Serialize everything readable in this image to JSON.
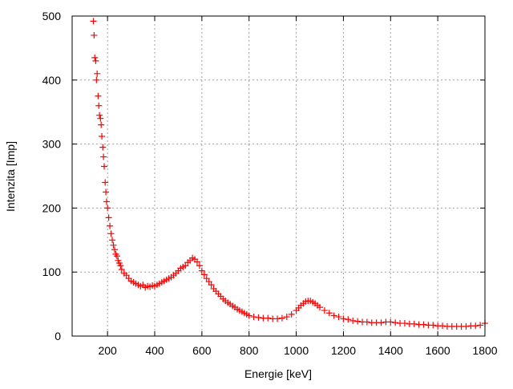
{
  "chart_data": {
    "type": "scatter",
    "title": "",
    "xlabel": "Energie [keV]",
    "ylabel": "Intenzita [Imp]",
    "xlim": [
      50,
      1800
    ],
    "ylim": [
      0,
      500
    ],
    "xticks": [
      200,
      400,
      600,
      800,
      1000,
      1200,
      1400,
      1600,
      1800
    ],
    "yticks": [
      0,
      100,
      200,
      300,
      400,
      500
    ],
    "grid": true,
    "marker": "+",
    "color": "#ff0000",
    "series": [
      {
        "x": [
          140,
          143,
          146,
          150,
          153,
          156,
          160,
          163,
          166,
          170,
          173,
          176,
          180,
          183,
          186,
          190,
          193,
          196,
          200,
          205,
          210,
          215,
          220,
          225,
          230,
          235,
          240,
          245,
          250,
          255,
          260,
          270,
          280,
          290,
          300,
          310,
          320,
          330,
          340,
          350,
          360,
          370,
          380,
          390,
          400,
          410,
          420,
          430,
          440,
          450,
          460,
          470,
          480,
          490,
          500,
          510,
          520,
          530,
          540,
          550,
          560,
          570,
          580,
          590,
          600,
          610,
          620,
          630,
          640,
          650,
          660,
          670,
          680,
          690,
          700,
          710,
          720,
          730,
          740,
          750,
          760,
          770,
          780,
          790,
          800,
          820,
          840,
          860,
          880,
          900,
          920,
          940,
          960,
          980,
          1000,
          1010,
          1020,
          1030,
          1040,
          1050,
          1060,
          1070,
          1080,
          1090,
          1100,
          1120,
          1140,
          1160,
          1180,
          1200,
          1220,
          1240,
          1260,
          1280,
          1300,
          1320,
          1340,
          1360,
          1380,
          1400,
          1420,
          1440,
          1460,
          1480,
          1500,
          1520,
          1540,
          1560,
          1580,
          1600,
          1620,
          1640,
          1660,
          1680,
          1700,
          1720,
          1740,
          1760,
          1780,
          1800
        ],
        "y": [
          492,
          470,
          435,
          430,
          400,
          410,
          375,
          360,
          345,
          340,
          330,
          312,
          295,
          280,
          265,
          240,
          225,
          210,
          200,
          185,
          172,
          160,
          150,
          142,
          135,
          128,
          125,
          118,
          114,
          110,
          104,
          98,
          95,
          90,
          86,
          84,
          82,
          80,
          78,
          80,
          76,
          78,
          77,
          79,
          78,
          80,
          82,
          84,
          86,
          88,
          90,
          92,
          95,
          98,
          102,
          106,
          108,
          110,
          115,
          118,
          122,
          120,
          116,
          110,
          102,
          96,
          90,
          85,
          80,
          74,
          70,
          66,
          62,
          58,
          55,
          52,
          50,
          47,
          45,
          42,
          40,
          38,
          36,
          34,
          32,
          30,
          29,
          28,
          28,
          27,
          27,
          28,
          30,
          34,
          40,
          44,
          48,
          51,
          54,
          55,
          55,
          53,
          51,
          48,
          45,
          40,
          36,
          32,
          30,
          27,
          26,
          24,
          23,
          22,
          22,
          21,
          21,
          21,
          22,
          22,
          21,
          20,
          20,
          19,
          19,
          18,
          18,
          17,
          17,
          16,
          16,
          15,
          15,
          15,
          15,
          15,
          16,
          16,
          17,
          20
        ]
      }
    ]
  }
}
